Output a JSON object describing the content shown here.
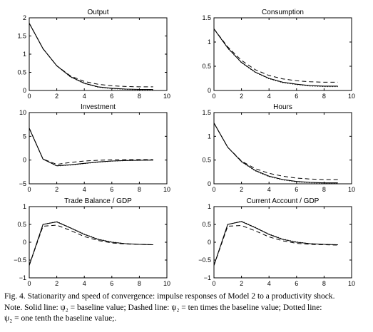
{
  "chart_data": [
    {
      "type": "line",
      "title": "Output",
      "xlim": [
        0,
        10
      ],
      "ylim": [
        0,
        2
      ],
      "xticks": [
        0,
        2,
        4,
        6,
        8,
        10
      ],
      "yticks": [
        0,
        0.5,
        1,
        1.5,
        2
      ],
      "xticklabels": [
        "0",
        "2",
        "4",
        "6",
        "8",
        "10"
      ],
      "yticklabels": [
        "0",
        "0.5",
        "1",
        "1.5",
        "2"
      ],
      "x": [
        0,
        1,
        2,
        3,
        4,
        5,
        6,
        7,
        8,
        9
      ],
      "series": [
        {
          "style": "solid",
          "values": [
            1.85,
            1.15,
            0.68,
            0.38,
            0.2,
            0.1,
            0.06,
            0.04,
            0.03,
            0.03
          ]
        },
        {
          "style": "dashed",
          "values": [
            1.85,
            1.15,
            0.68,
            0.4,
            0.25,
            0.17,
            0.13,
            0.11,
            0.1,
            0.1
          ]
        },
        {
          "style": "dotted",
          "values": [
            1.85,
            1.15,
            0.68,
            0.37,
            0.19,
            0.09,
            0.05,
            0.03,
            0.02,
            0.02
          ]
        }
      ]
    },
    {
      "type": "line",
      "title": "Consumption",
      "xlim": [
        0,
        10
      ],
      "ylim": [
        0,
        1.5
      ],
      "xticks": [
        0,
        2,
        4,
        6,
        8,
        10
      ],
      "yticks": [
        0,
        0.5,
        1,
        1.5
      ],
      "xticklabels": [
        "0",
        "2",
        "4",
        "6",
        "8",
        "10"
      ],
      "yticklabels": [
        "0",
        "0.5",
        "1",
        "1.5"
      ],
      "x": [
        0,
        1,
        2,
        3,
        4,
        5,
        6,
        7,
        8,
        9
      ],
      "series": [
        {
          "style": "solid",
          "values": [
            1.27,
            0.88,
            0.58,
            0.38,
            0.25,
            0.17,
            0.13,
            0.1,
            0.09,
            0.09
          ]
        },
        {
          "style": "dashed",
          "values": [
            1.27,
            0.9,
            0.62,
            0.43,
            0.31,
            0.24,
            0.2,
            0.18,
            0.17,
            0.17
          ]
        },
        {
          "style": "dotted",
          "values": [
            1.27,
            0.87,
            0.57,
            0.37,
            0.24,
            0.16,
            0.12,
            0.09,
            0.08,
            0.08
          ]
        }
      ]
    },
    {
      "type": "line",
      "title": "Investment",
      "xlim": [
        0,
        10
      ],
      "ylim": [
        -5,
        10
      ],
      "xticks": [
        0,
        2,
        4,
        6,
        8,
        10
      ],
      "yticks": [
        -5,
        0,
        5,
        10
      ],
      "xticklabels": [
        "0",
        "2",
        "4",
        "6",
        "8",
        "10"
      ],
      "yticklabels": [
        "−5",
        "0",
        "5",
        "10"
      ],
      "x": [
        0,
        1,
        2,
        3,
        4,
        5,
        6,
        7,
        8,
        9
      ],
      "series": [
        {
          "style": "solid",
          "values": [
            6.7,
            0.2,
            -1.2,
            -1.0,
            -0.7,
            -0.4,
            -0.2,
            -0.1,
            -0.05,
            0.0
          ]
        },
        {
          "style": "dashed",
          "values": [
            6.7,
            0.2,
            -0.9,
            -0.5,
            -0.2,
            -0.05,
            0.05,
            0.1,
            0.1,
            0.1
          ]
        },
        {
          "style": "dotted",
          "values": [
            6.7,
            0.2,
            -1.25,
            -1.05,
            -0.75,
            -0.45,
            -0.25,
            -0.12,
            -0.06,
            -0.02
          ]
        }
      ]
    },
    {
      "type": "line",
      "title": "Hours",
      "xlim": [
        0,
        10
      ],
      "ylim": [
        0,
        1.5
      ],
      "xticks": [
        0,
        2,
        4,
        6,
        8,
        10
      ],
      "yticks": [
        0,
        0.5,
        1,
        1.5
      ],
      "xticklabels": [
        "0",
        "2",
        "4",
        "6",
        "8",
        "10"
      ],
      "yticklabels": [
        "0",
        "0.5",
        "1",
        "1.5"
      ],
      "x": [
        0,
        1,
        2,
        3,
        4,
        5,
        6,
        7,
        8,
        9
      ],
      "series": [
        {
          "style": "solid",
          "values": [
            1.28,
            0.77,
            0.47,
            0.28,
            0.16,
            0.09,
            0.05,
            0.03,
            0.02,
            0.02
          ]
        },
        {
          "style": "dashed",
          "values": [
            1.28,
            0.77,
            0.48,
            0.32,
            0.22,
            0.16,
            0.12,
            0.1,
            0.09,
            0.09
          ]
        },
        {
          "style": "dotted",
          "values": [
            1.28,
            0.77,
            0.46,
            0.27,
            0.15,
            0.08,
            0.04,
            0.02,
            0.01,
            0.01
          ]
        }
      ]
    },
    {
      "type": "line",
      "title": "Trade Balance / GDP",
      "xlim": [
        0,
        10
      ],
      "ylim": [
        -1,
        1
      ],
      "xticks": [
        0,
        2,
        4,
        6,
        8,
        10
      ],
      "yticks": [
        -1,
        -0.5,
        0,
        0.5,
        1
      ],
      "xticklabels": [
        "0",
        "2",
        "4",
        "6",
        "8",
        "10"
      ],
      "yticklabels": [
        "−1",
        "−0.5",
        "0",
        "0.5",
        "1"
      ],
      "x": [
        0,
        1,
        2,
        3,
        4,
        5,
        6,
        7,
        8,
        9
      ],
      "series": [
        {
          "style": "solid",
          "values": [
            -0.65,
            0.5,
            0.57,
            0.4,
            0.22,
            0.08,
            0.0,
            -0.04,
            -0.06,
            -0.07
          ]
        },
        {
          "style": "dashed",
          "values": [
            -0.65,
            0.45,
            0.48,
            0.33,
            0.16,
            0.05,
            -0.02,
            -0.05,
            -0.06,
            -0.07
          ]
        },
        {
          "style": "dotted",
          "values": [
            -0.65,
            0.5,
            0.58,
            0.41,
            0.23,
            0.09,
            0.01,
            -0.04,
            -0.06,
            -0.07
          ]
        }
      ]
    },
    {
      "type": "line",
      "title": "Current Account / GDP",
      "xlim": [
        0,
        10
      ],
      "ylim": [
        -1,
        1
      ],
      "xticks": [
        0,
        2,
        4,
        6,
        8,
        10
      ],
      "yticks": [
        -1,
        -0.5,
        0,
        0.5,
        1
      ],
      "xticklabels": [
        "0",
        "2",
        "4",
        "6",
        "8",
        "10"
      ],
      "yticklabels": [
        "−1",
        "−0.5",
        "0",
        "0.5",
        "1"
      ],
      "x": [
        0,
        1,
        2,
        3,
        4,
        5,
        6,
        7,
        8,
        9
      ],
      "series": [
        {
          "style": "solid",
          "values": [
            -0.65,
            0.5,
            0.58,
            0.41,
            0.22,
            0.08,
            0.0,
            -0.04,
            -0.06,
            -0.07
          ]
        },
        {
          "style": "dashed",
          "values": [
            -0.65,
            0.45,
            0.47,
            0.32,
            0.15,
            0.04,
            -0.03,
            -0.06,
            -0.07,
            -0.08
          ]
        },
        {
          "style": "dotted",
          "values": [
            -0.65,
            0.5,
            0.59,
            0.42,
            0.23,
            0.09,
            0.01,
            -0.04,
            -0.06,
            -0.07
          ]
        }
      ]
    }
  ],
  "caption": {
    "line1": "Fig. 4.  Stationarity and speed of convergence: impulse responses of Model 2 to a productivity shock.",
    "line2": "Note. Solid line: ψ₂ = baseline value; Dashed line: ψ₂ = ten times the baseline value; Dotted line:",
    "line3": "ψ₂ = one tenth the baseline value;."
  }
}
